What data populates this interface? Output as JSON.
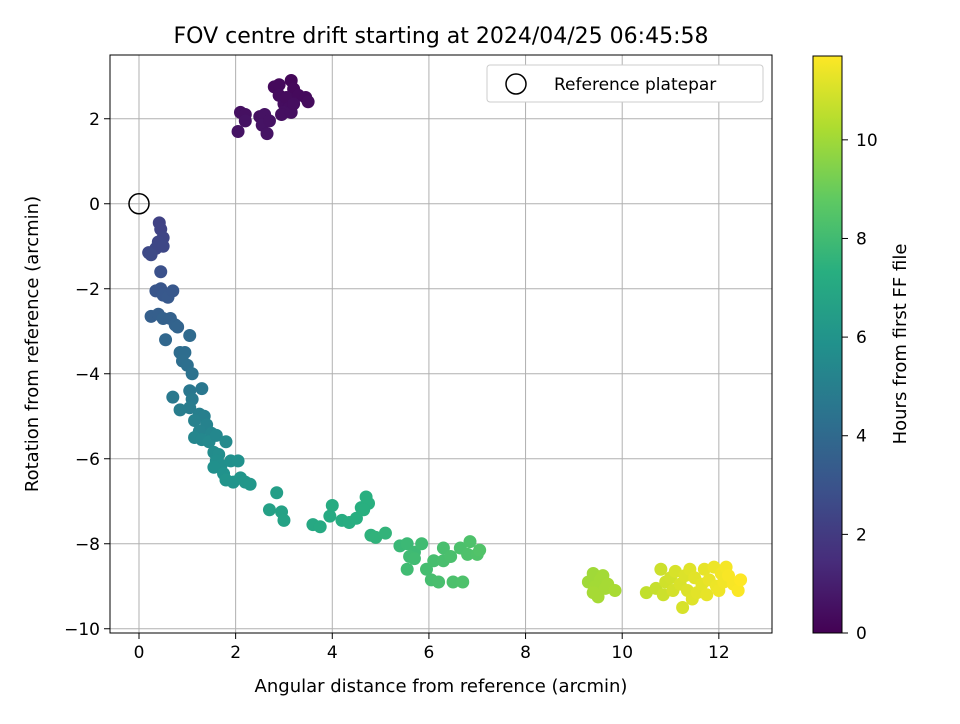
{
  "chart_data": {
    "type": "scatter",
    "title": "FOV centre drift starting at 2024/04/25 06:45:58",
    "xlabel": "Angular distance from reference (arcmin)",
    "ylabel": "Rotation from reference (arcmin)",
    "xlim": [
      -0.6,
      13.1
    ],
    "ylim": [
      -10.1,
      3.5
    ],
    "x_ticks": [
      0,
      2,
      4,
      6,
      8,
      10,
      12
    ],
    "y_ticks": [
      -10,
      -8,
      -6,
      -4,
      -2,
      0,
      2
    ],
    "grid": true,
    "legend": {
      "placement": "top-right",
      "entries": [
        "Reference platepar"
      ]
    },
    "reference_point": {
      "name": "Reference platepar",
      "x": 0,
      "y": 0
    },
    "colorbar": {
      "label": "Hours from first FF file",
      "colormap": "viridis",
      "range": [
        0,
        11.7
      ],
      "ticks": [
        0,
        2,
        4,
        6,
        8,
        10
      ]
    },
    "points": [
      {
        "x": 2.1,
        "y": 2.15,
        "c": 0.5
      },
      {
        "x": 2.2,
        "y": 2.1,
        "c": 0.5
      },
      {
        "x": 2.05,
        "y": 1.7,
        "c": 0.6
      },
      {
        "x": 2.2,
        "y": 1.95,
        "c": 0.55
      },
      {
        "x": 2.5,
        "y": 2.05,
        "c": 0.5
      },
      {
        "x": 2.6,
        "y": 2.1,
        "c": 0.55
      },
      {
        "x": 2.55,
        "y": 1.85,
        "c": 0.6
      },
      {
        "x": 2.65,
        "y": 1.65,
        "c": 0.6
      },
      {
        "x": 2.7,
        "y": 1.95,
        "c": 0.55
      },
      {
        "x": 2.8,
        "y": 2.75,
        "c": 0.3
      },
      {
        "x": 2.9,
        "y": 2.8,
        "c": 0.3
      },
      {
        "x": 3.15,
        "y": 2.9,
        "c": 0.2
      },
      {
        "x": 3.2,
        "y": 2.7,
        "c": 0.25
      },
      {
        "x": 2.9,
        "y": 2.55,
        "c": 0.35
      },
      {
        "x": 3.0,
        "y": 2.35,
        "c": 0.4
      },
      {
        "x": 3.05,
        "y": 2.5,
        "c": 0.35
      },
      {
        "x": 3.1,
        "y": 2.25,
        "c": 0.4
      },
      {
        "x": 3.0,
        "y": 2.15,
        "c": 0.45
      },
      {
        "x": 2.95,
        "y": 2.1,
        "c": 0.45
      },
      {
        "x": 3.15,
        "y": 2.15,
        "c": 0.45
      },
      {
        "x": 3.3,
        "y": 2.55,
        "c": 0.3
      },
      {
        "x": 3.45,
        "y": 2.5,
        "c": 0.3
      },
      {
        "x": 3.5,
        "y": 2.4,
        "c": 0.35
      },
      {
        "x": 3.2,
        "y": 2.35,
        "c": 0.4
      },
      {
        "x": 0.42,
        "y": -0.45,
        "c": 2.3
      },
      {
        "x": 0.45,
        "y": -0.6,
        "c": 2.35
      },
      {
        "x": 0.5,
        "y": -0.8,
        "c": 2.4
      },
      {
        "x": 0.4,
        "y": -0.9,
        "c": 2.45
      },
      {
        "x": 0.35,
        "y": -1.05,
        "c": 2.5
      },
      {
        "x": 0.5,
        "y": -1.0,
        "c": 2.5
      },
      {
        "x": 0.2,
        "y": -1.15,
        "c": 2.55
      },
      {
        "x": 0.25,
        "y": -1.2,
        "c": 2.6
      },
      {
        "x": 0.45,
        "y": -1.6,
        "c": 2.9
      },
      {
        "x": 0.35,
        "y": -2.05,
        "c": 3.1
      },
      {
        "x": 0.45,
        "y": -2.0,
        "c": 3.1
      },
      {
        "x": 0.5,
        "y": -2.15,
        "c": 3.2
      },
      {
        "x": 0.6,
        "y": -2.2,
        "c": 3.25
      },
      {
        "x": 0.7,
        "y": -2.05,
        "c": 3.2
      },
      {
        "x": 0.25,
        "y": -2.65,
        "c": 3.5
      },
      {
        "x": 0.4,
        "y": -2.6,
        "c": 3.5
      },
      {
        "x": 0.5,
        "y": -2.7,
        "c": 3.6
      },
      {
        "x": 0.65,
        "y": -2.7,
        "c": 3.6
      },
      {
        "x": 0.75,
        "y": -2.85,
        "c": 3.7
      },
      {
        "x": 0.8,
        "y": -2.9,
        "c": 3.75
      },
      {
        "x": 0.55,
        "y": -3.2,
        "c": 3.9
      },
      {
        "x": 1.05,
        "y": -3.1,
        "c": 4.0
      },
      {
        "x": 0.85,
        "y": -3.5,
        "c": 4.1
      },
      {
        "x": 0.95,
        "y": -3.5,
        "c": 4.15
      },
      {
        "x": 0.9,
        "y": -3.7,
        "c": 4.2
      },
      {
        "x": 1.0,
        "y": -3.8,
        "c": 4.25
      },
      {
        "x": 1.1,
        "y": -4.0,
        "c": 4.4
      },
      {
        "x": 1.05,
        "y": -4.4,
        "c": 4.6
      },
      {
        "x": 1.3,
        "y": -4.35,
        "c": 4.6
      },
      {
        "x": 0.7,
        "y": -4.55,
        "c": 4.7
      },
      {
        "x": 1.1,
        "y": -4.6,
        "c": 4.75
      },
      {
        "x": 1.05,
        "y": -4.8,
        "c": 4.85
      },
      {
        "x": 0.85,
        "y": -4.85,
        "c": 4.9
      },
      {
        "x": 1.25,
        "y": -4.95,
        "c": 5.0
      },
      {
        "x": 1.35,
        "y": -5.0,
        "c": 5.0
      },
      {
        "x": 1.15,
        "y": -5.1,
        "c": 5.1
      },
      {
        "x": 1.4,
        "y": -5.2,
        "c": 5.15
      },
      {
        "x": 1.25,
        "y": -5.35,
        "c": 5.2
      },
      {
        "x": 1.5,
        "y": -5.4,
        "c": 5.3
      },
      {
        "x": 1.15,
        "y": -5.5,
        "c": 5.35
      },
      {
        "x": 1.3,
        "y": -5.55,
        "c": 5.4
      },
      {
        "x": 1.45,
        "y": -5.6,
        "c": 5.45
      },
      {
        "x": 1.6,
        "y": -5.45,
        "c": 5.4
      },
      {
        "x": 1.8,
        "y": -5.6,
        "c": 5.5
      },
      {
        "x": 1.55,
        "y": -5.85,
        "c": 5.6
      },
      {
        "x": 1.65,
        "y": -5.9,
        "c": 5.65
      },
      {
        "x": 1.6,
        "y": -6.05,
        "c": 5.7
      },
      {
        "x": 1.7,
        "y": -6.15,
        "c": 5.75
      },
      {
        "x": 1.55,
        "y": -6.2,
        "c": 5.8
      },
      {
        "x": 1.9,
        "y": -6.05,
        "c": 5.8
      },
      {
        "x": 2.05,
        "y": -6.05,
        "c": 5.85
      },
      {
        "x": 1.75,
        "y": -6.35,
        "c": 5.9
      },
      {
        "x": 1.8,
        "y": -6.5,
        "c": 6.0
      },
      {
        "x": 1.95,
        "y": -6.55,
        "c": 6.0
      },
      {
        "x": 2.1,
        "y": -6.45,
        "c": 6.05
      },
      {
        "x": 2.2,
        "y": -6.55,
        "c": 6.1
      },
      {
        "x": 2.3,
        "y": -6.6,
        "c": 6.15
      },
      {
        "x": 2.85,
        "y": -6.8,
        "c": 6.5
      },
      {
        "x": 2.7,
        "y": -7.2,
        "c": 6.6
      },
      {
        "x": 2.95,
        "y": -7.25,
        "c": 6.65
      },
      {
        "x": 3.0,
        "y": -7.45,
        "c": 6.7
      },
      {
        "x": 3.6,
        "y": -7.55,
        "c": 7.0
      },
      {
        "x": 3.75,
        "y": -7.6,
        "c": 7.05
      },
      {
        "x": 3.95,
        "y": -7.35,
        "c": 7.1
      },
      {
        "x": 4.0,
        "y": -7.1,
        "c": 7.15
      },
      {
        "x": 4.2,
        "y": -7.45,
        "c": 7.2
      },
      {
        "x": 4.35,
        "y": -7.5,
        "c": 7.25
      },
      {
        "x": 4.5,
        "y": -7.4,
        "c": 7.3
      },
      {
        "x": 4.6,
        "y": -7.15,
        "c": 7.3
      },
      {
        "x": 4.7,
        "y": -6.9,
        "c": 7.35
      },
      {
        "x": 4.75,
        "y": -7.05,
        "c": 7.35
      },
      {
        "x": 4.65,
        "y": -7.2,
        "c": 7.35
      },
      {
        "x": 4.8,
        "y": -7.8,
        "c": 7.5
      },
      {
        "x": 4.9,
        "y": -7.85,
        "c": 7.55
      },
      {
        "x": 5.1,
        "y": -7.75,
        "c": 7.6
      },
      {
        "x": 5.4,
        "y": -8.05,
        "c": 7.8
      },
      {
        "x": 5.55,
        "y": -8.0,
        "c": 7.85
      },
      {
        "x": 5.7,
        "y": -8.2,
        "c": 7.9
      },
      {
        "x": 5.6,
        "y": -8.3,
        "c": 7.95
      },
      {
        "x": 5.55,
        "y": -8.6,
        "c": 8.0
      },
      {
        "x": 5.7,
        "y": -8.35,
        "c": 8.0
      },
      {
        "x": 5.85,
        "y": -8.0,
        "c": 8.0
      },
      {
        "x": 5.95,
        "y": -8.6,
        "c": 8.1
      },
      {
        "x": 6.05,
        "y": -8.85,
        "c": 8.15
      },
      {
        "x": 6.2,
        "y": -8.9,
        "c": 8.2
      },
      {
        "x": 6.1,
        "y": -8.4,
        "c": 8.15
      },
      {
        "x": 6.3,
        "y": -8.4,
        "c": 8.2
      },
      {
        "x": 6.3,
        "y": -8.1,
        "c": 8.2
      },
      {
        "x": 6.45,
        "y": -8.3,
        "c": 8.25
      },
      {
        "x": 6.5,
        "y": -8.9,
        "c": 8.3
      },
      {
        "x": 6.7,
        "y": -8.9,
        "c": 8.35
      },
      {
        "x": 6.65,
        "y": -8.1,
        "c": 8.3
      },
      {
        "x": 6.8,
        "y": -8.25,
        "c": 8.35
      },
      {
        "x": 6.85,
        "y": -7.95,
        "c": 8.35
      },
      {
        "x": 7.0,
        "y": -8.25,
        "c": 8.4
      },
      {
        "x": 7.05,
        "y": -8.15,
        "c": 8.45
      },
      {
        "x": 9.3,
        "y": -8.9,
        "c": 10.0
      },
      {
        "x": 9.4,
        "y": -8.7,
        "c": 10.0
      },
      {
        "x": 9.45,
        "y": -9.0,
        "c": 10.05
      },
      {
        "x": 9.5,
        "y": -9.25,
        "c": 10.1
      },
      {
        "x": 9.4,
        "y": -9.15,
        "c": 10.1
      },
      {
        "x": 9.55,
        "y": -8.85,
        "c": 10.05
      },
      {
        "x": 9.6,
        "y": -8.75,
        "c": 10.05
      },
      {
        "x": 9.65,
        "y": -9.05,
        "c": 10.1
      },
      {
        "x": 9.7,
        "y": -8.95,
        "c": 10.1
      },
      {
        "x": 9.85,
        "y": -9.1,
        "c": 10.15
      },
      {
        "x": 10.5,
        "y": -9.15,
        "c": 10.6
      },
      {
        "x": 10.7,
        "y": -9.05,
        "c": 10.7
      },
      {
        "x": 10.8,
        "y": -8.6,
        "c": 10.8
      },
      {
        "x": 10.85,
        "y": -9.2,
        "c": 10.8
      },
      {
        "x": 10.9,
        "y": -8.9,
        "c": 10.85
      },
      {
        "x": 11.0,
        "y": -8.8,
        "c": 10.9
      },
      {
        "x": 11.05,
        "y": -9.1,
        "c": 10.95
      },
      {
        "x": 11.1,
        "y": -8.65,
        "c": 11.0
      },
      {
        "x": 11.2,
        "y": -8.95,
        "c": 11.05
      },
      {
        "x": 11.25,
        "y": -9.5,
        "c": 11.0
      },
      {
        "x": 11.3,
        "y": -8.75,
        "c": 11.1
      },
      {
        "x": 11.35,
        "y": -9.1,
        "c": 11.1
      },
      {
        "x": 11.4,
        "y": -8.6,
        "c": 11.15
      },
      {
        "x": 11.45,
        "y": -9.3,
        "c": 11.15
      },
      {
        "x": 11.5,
        "y": -8.8,
        "c": 11.2
      },
      {
        "x": 11.55,
        "y": -9.15,
        "c": 11.2
      },
      {
        "x": 11.65,
        "y": -8.95,
        "c": 11.25
      },
      {
        "x": 11.7,
        "y": -8.6,
        "c": 11.3
      },
      {
        "x": 11.75,
        "y": -9.2,
        "c": 11.3
      },
      {
        "x": 11.8,
        "y": -8.85,
        "c": 11.35
      },
      {
        "x": 11.9,
        "y": -8.55,
        "c": 11.4
      },
      {
        "x": 11.95,
        "y": -9.0,
        "c": 11.4
      },
      {
        "x": 12.0,
        "y": -9.1,
        "c": 11.45
      },
      {
        "x": 12.05,
        "y": -8.7,
        "c": 11.5
      },
      {
        "x": 12.1,
        "y": -8.9,
        "c": 11.5
      },
      {
        "x": 12.15,
        "y": -8.55,
        "c": 11.55
      },
      {
        "x": 12.2,
        "y": -8.75,
        "c": 11.6
      },
      {
        "x": 12.3,
        "y": -8.95,
        "c": 11.6
      },
      {
        "x": 12.4,
        "y": -9.1,
        "c": 11.65
      },
      {
        "x": 12.45,
        "y": -8.85,
        "c": 11.7
      }
    ]
  }
}
